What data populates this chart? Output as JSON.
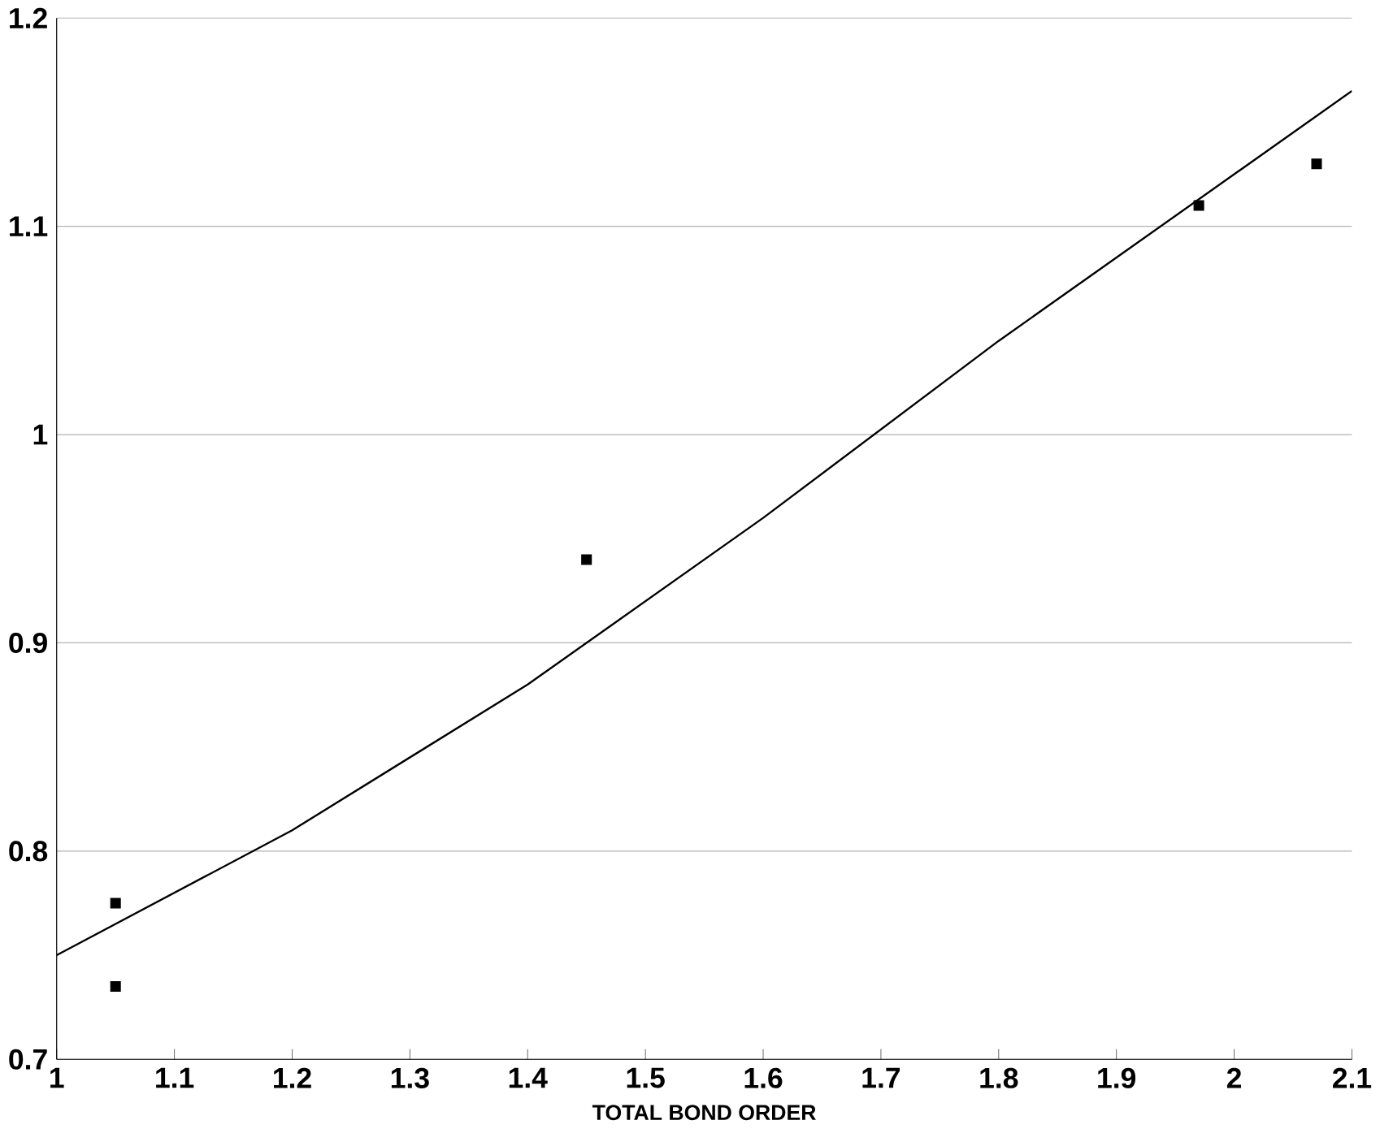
{
  "chart_data": {
    "type": "scatter",
    "xlabel": "TOTAL BOND ORDER",
    "xlim": [
      1,
      2.1
    ],
    "xticks": [
      1,
      1.1,
      1.2,
      1.3,
      1.4,
      1.5,
      1.6,
      1.7,
      1.8,
      1.9,
      2,
      2.1
    ],
    "ylim": [
      0.7,
      1.2
    ],
    "yticks": [
      0.7,
      0.8,
      0.9,
      1,
      1.1,
      1.2
    ],
    "grid": "y",
    "marker": "square",
    "series": [
      {
        "color": "#000000",
        "x": [
          1.05,
          1.05,
          1.45,
          1.97,
          2.07
        ],
        "values": [
          0.775,
          0.735,
          0.94,
          1.11,
          1.13
        ]
      },
      {
        "type": "line",
        "color": "#000000",
        "marker": "none",
        "x": [
          1,
          1.2,
          1.4,
          1.6,
          1.8,
          2.0,
          2.1
        ],
        "values": [
          0.75,
          0.81,
          0.88,
          0.96,
          1.045,
          1.125,
          1.165
        ]
      }
    ]
  }
}
